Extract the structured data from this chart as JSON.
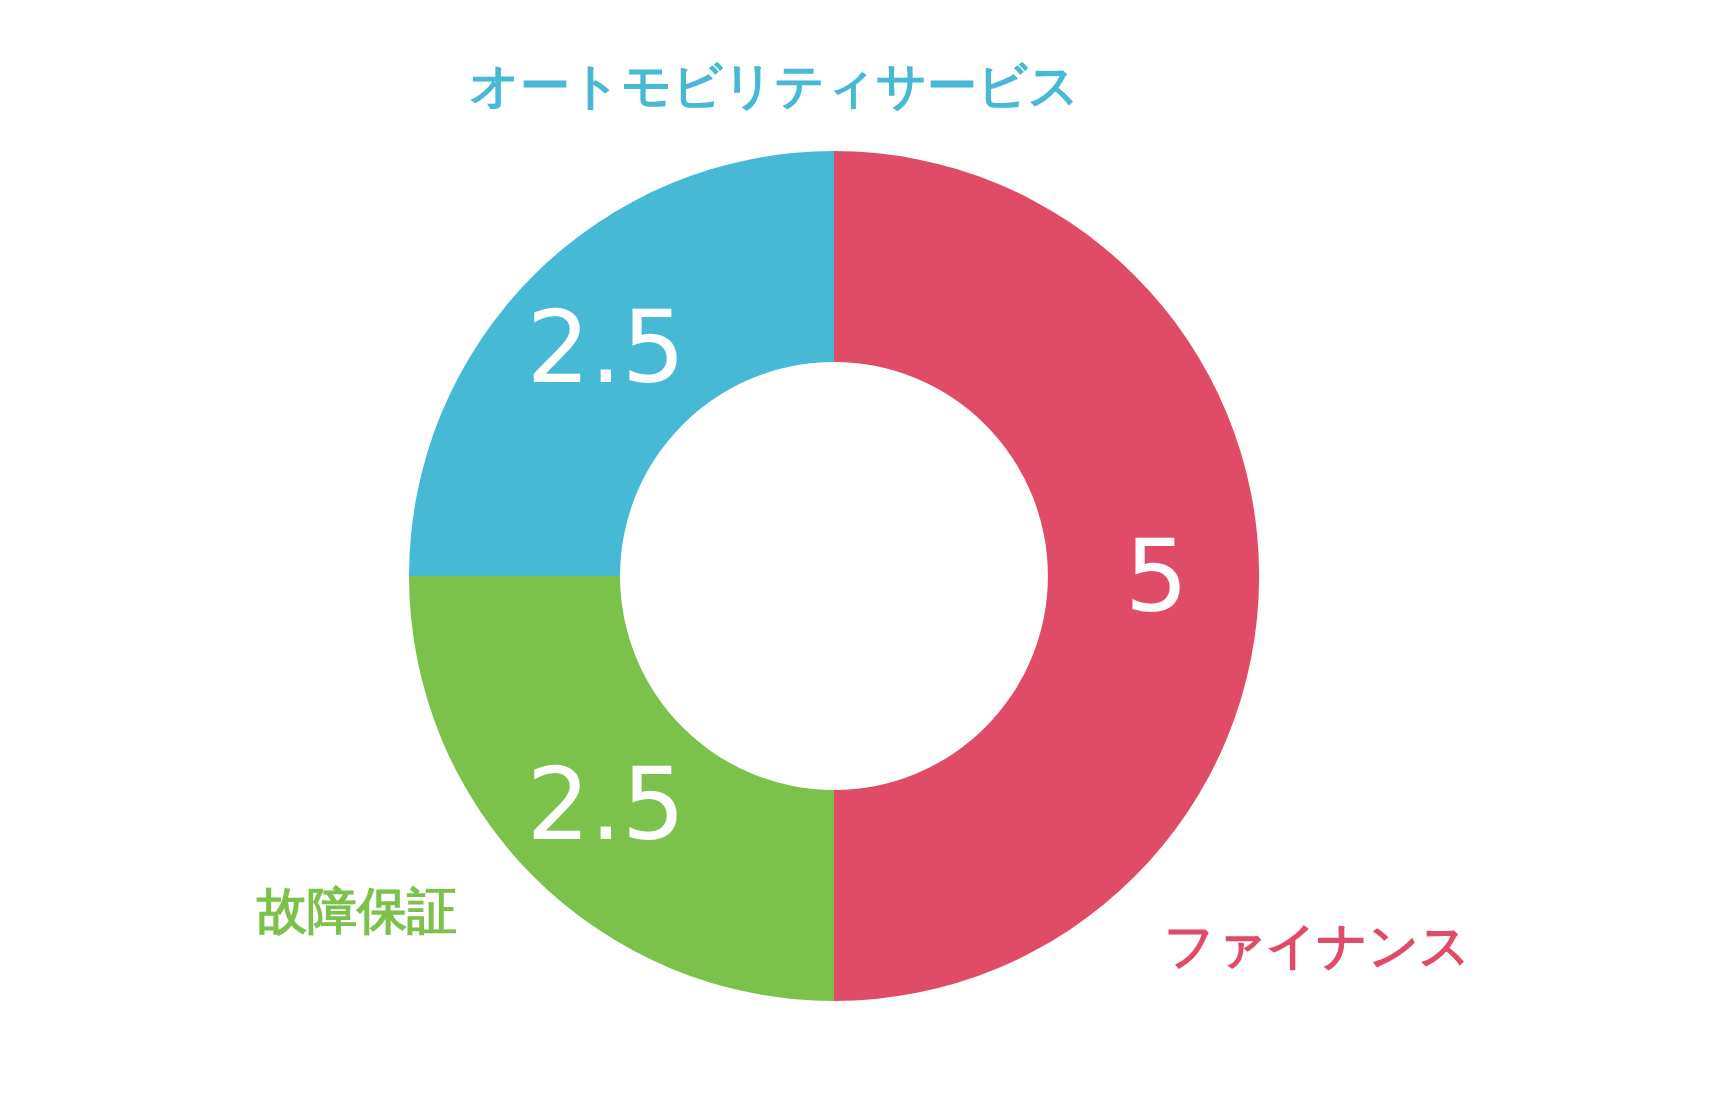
{
  "chart_data": {
    "type": "donut",
    "categories": [
      "ファイナンス",
      "故障保証",
      "オートモビリティサービス"
    ],
    "values": [
      5,
      2.5,
      2.5
    ],
    "colors": [
      "#e04c67",
      "#7bc14b",
      "#47b9d4"
    ],
    "data_labels": true,
    "legend": false
  }
}
